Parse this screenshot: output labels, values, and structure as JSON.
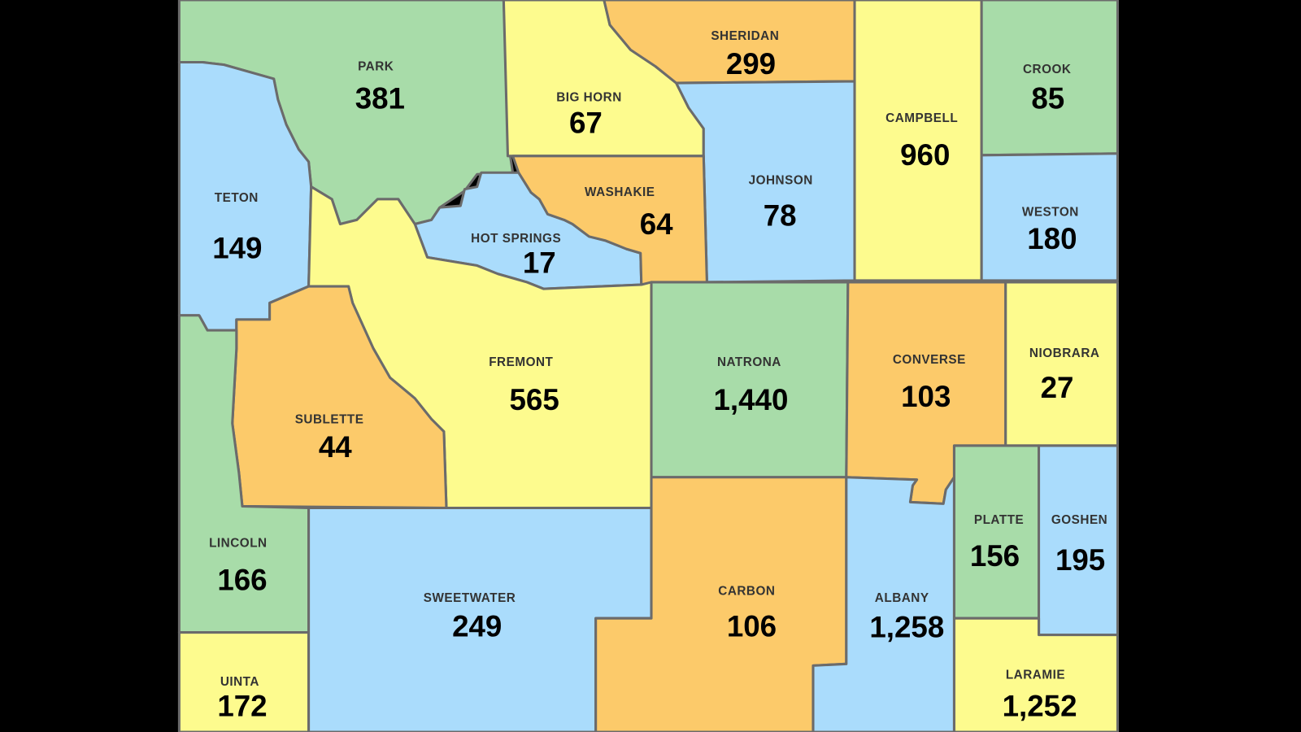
{
  "colors": {
    "green": "#a8dca9",
    "yellow": "#fdfb8e",
    "orange": "#fcca6a",
    "blue": "#aadcfc",
    "background": "#000000",
    "border": "#6b6b6b"
  },
  "counties": [
    {
      "name": "PARK",
      "value": "381",
      "color": "green"
    },
    {
      "name": "BIG HORN",
      "value": "67",
      "color": "yellow"
    },
    {
      "name": "SHERIDAN",
      "value": "299",
      "color": "orange"
    },
    {
      "name": "JOHNSON",
      "value": "78",
      "color": "blue"
    },
    {
      "name": "CAMPBELL",
      "value": "960",
      "color": "yellow"
    },
    {
      "name": "CROOK",
      "value": "85",
      "color": "green"
    },
    {
      "name": "WESTON",
      "value": "180",
      "color": "blue"
    },
    {
      "name": "TETON",
      "value": "149",
      "color": "blue"
    },
    {
      "name": "HOT SPRINGS",
      "value": "17",
      "color": "blue"
    },
    {
      "name": "WASHAKIE",
      "value": "64",
      "color": "orange"
    },
    {
      "name": "FREMONT",
      "value": "565",
      "color": "yellow"
    },
    {
      "name": "SUBLETTE",
      "value": "44",
      "color": "orange"
    },
    {
      "name": "LINCOLN",
      "value": "166",
      "color": "green"
    },
    {
      "name": "UINTA",
      "value": "172",
      "color": "yellow"
    },
    {
      "name": "SWEETWATER",
      "value": "249",
      "color": "blue"
    },
    {
      "name": "NATRONA",
      "value": "1,440",
      "color": "green"
    },
    {
      "name": "CARBON",
      "value": "106",
      "color": "orange"
    },
    {
      "name": "CONVERSE",
      "value": "103",
      "color": "orange"
    },
    {
      "name": "NIOBRARA",
      "value": "27",
      "color": "yellow"
    },
    {
      "name": "ALBANY",
      "value": "1,258",
      "color": "blue"
    },
    {
      "name": "PLATTE",
      "value": "156",
      "color": "green"
    },
    {
      "name": "GOSHEN",
      "value": "195",
      "color": "blue"
    },
    {
      "name": "LARAMIE",
      "value": "1,252",
      "color": "yellow"
    }
  ]
}
